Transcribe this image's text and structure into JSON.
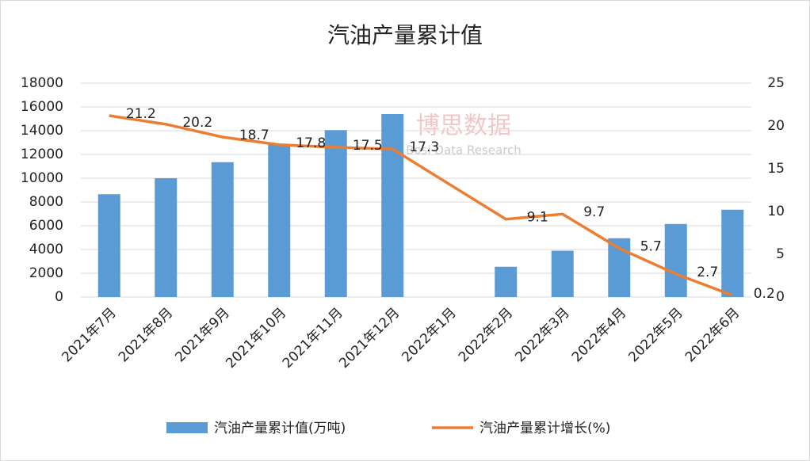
{
  "chart_data": {
    "type": "bar_line",
    "title": "汽油产量累计值",
    "watermark": [
      "博思数据",
      "Bosi Data Research"
    ],
    "categories": [
      "2021年7月",
      "2021年8月",
      "2021年9月",
      "2021年10月",
      "2021年11月",
      "2021年12月",
      "2022年1月",
      "2022年2月",
      "2022年3月",
      "2022年4月",
      "2022年5月",
      "2022年6月"
    ],
    "series": [
      {
        "name": "汽油产量累计值(万吨)",
        "color": "#5b9bd5",
        "kind": "bar",
        "values": [
          8650,
          10000,
          11350,
          12900,
          14050,
          15400,
          null,
          2550,
          3900,
          4950,
          6150,
          7350
        ]
      },
      {
        "name": "汽油产量累计增长(%)",
        "color": "#ed7d31",
        "kind": "line",
        "axis": "y2",
        "values": [
          21.2,
          20.2,
          18.7,
          17.8,
          17.5,
          17.3,
          13.2,
          9.1,
          9.7,
          5.7,
          2.7,
          0.2
        ],
        "value_labels": [
          "21.2",
          "20.2",
          "18.7",
          "17.8",
          "17.5",
          "17.3",
          null,
          "9.1",
          "9.7",
          "5.7",
          "2.7",
          "0.2"
        ]
      }
    ],
    "ylim": [
      0,
      18000
    ],
    "yticks": [
      0,
      2000,
      4000,
      6000,
      8000,
      10000,
      12000,
      14000,
      16000,
      18000
    ],
    "y2lim": [
      0,
      25
    ],
    "y2ticks": [
      0,
      5,
      10,
      15,
      20,
      25
    ],
    "grid": true
  }
}
